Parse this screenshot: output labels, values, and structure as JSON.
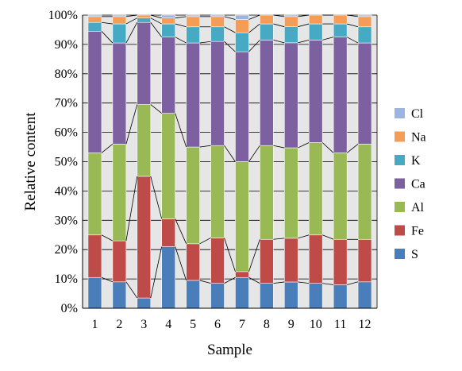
{
  "chart_data": {
    "type": "bar",
    "stacked": true,
    "normalized": true,
    "categories": [
      "1",
      "2",
      "3",
      "4",
      "5",
      "6",
      "7",
      "8",
      "9",
      "10",
      "11",
      "12"
    ],
    "series": [
      {
        "name": "S",
        "color": "#4a7ebb",
        "values": [
          10.5,
          9.0,
          3.5,
          21.0,
          9.5,
          8.5,
          10.5,
          8.5,
          9.0,
          8.5,
          8.0,
          9.0
        ]
      },
      {
        "name": "Fe",
        "color": "#be4b48",
        "values": [
          14.5,
          14.0,
          41.5,
          9.5,
          12.5,
          15.5,
          2.0,
          15.0,
          15.0,
          16.5,
          15.5,
          14.5
        ]
      },
      {
        "name": "Al",
        "color": "#98b954",
        "values": [
          28.0,
          33.0,
          24.5,
          36.0,
          33.0,
          31.5,
          37.5,
          32.0,
          31.0,
          31.5,
          29.5,
          32.5
        ]
      },
      {
        "name": "Ca",
        "color": "#7d60a0",
        "values": [
          41.5,
          34.5,
          28.0,
          26.0,
          35.5,
          35.5,
          37.5,
          36.0,
          36.0,
          35.0,
          39.5,
          34.5
        ]
      },
      {
        "name": "K",
        "color": "#46aac5",
        "values": [
          3.0,
          6.5,
          1.5,
          4.5,
          5.5,
          5.0,
          6.5,
          5.5,
          5.5,
          5.5,
          4.5,
          5.5
        ]
      },
      {
        "name": "Na",
        "color": "#f59d56",
        "values": [
          2.0,
          2.5,
          1.0,
          2.0,
          3.5,
          3.5,
          4.5,
          3.0,
          3.5,
          3.0,
          3.0,
          3.5
        ]
      },
      {
        "name": "Cl",
        "color": "#9cb5e0",
        "values": [
          0.5,
          0.5,
          0.0,
          1.0,
          0.5,
          0.5,
          1.5,
          0.0,
          0.5,
          0.0,
          0.0,
          0.5
        ]
      }
    ],
    "xlabel": "Sample",
    "ylabel": "Relative content",
    "ylim": [
      0,
      100
    ],
    "yticks": [
      "0%",
      "10%",
      "20%",
      "30%",
      "40%",
      "50%",
      "60%",
      "70%",
      "80%",
      "90%",
      "100%"
    ],
    "grid": true,
    "legend_position": "right",
    "legend_order": [
      "Cl",
      "Na",
      "K",
      "Ca",
      "Al",
      "Fe",
      "S"
    ],
    "plot_background": "#e6e6e6"
  }
}
